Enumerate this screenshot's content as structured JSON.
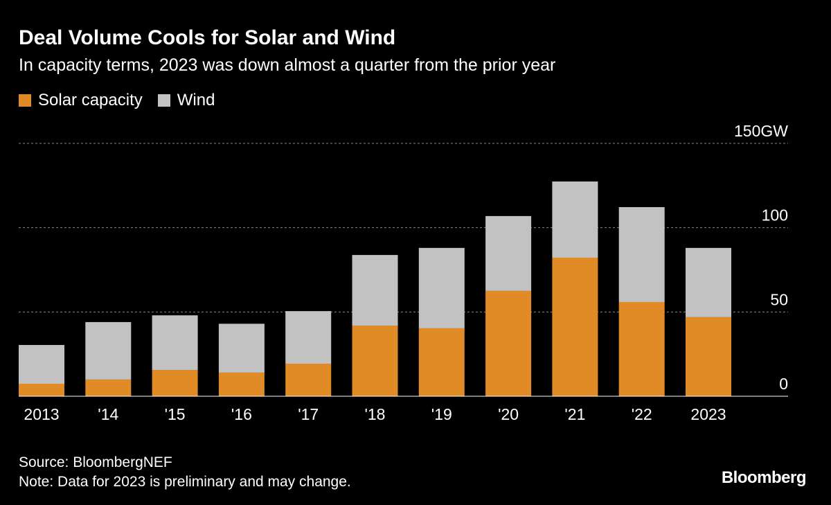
{
  "title": "Deal Volume Cools for Solar and Wind",
  "subtitle": "In capacity terms, 2023 was down almost a quarter from the prior year",
  "source": "Source: BloombergNEF",
  "note": "Note: Data for 2023 is preliminary and may change.",
  "logo": "Bloomberg",
  "colors": {
    "solar": "#e08b26",
    "wind": "#c2c2c2",
    "background": "#000000",
    "grid": "#888888"
  },
  "chart_data": {
    "type": "bar",
    "stacked": true,
    "categories": [
      "2013",
      "'14",
      "'15",
      "'16",
      "'17",
      "'18",
      "'19",
      "'20",
      "'21",
      "'22",
      "2023"
    ],
    "series": [
      {
        "name": "Solar capacity",
        "values": [
          7.4,
          9.9,
          15.6,
          14.0,
          19.3,
          41.9,
          40.3,
          62.5,
          82.2,
          55.9,
          46.9
        ]
      },
      {
        "name": "Wind",
        "values": [
          23.0,
          34.1,
          32.4,
          29.0,
          31.2,
          41.9,
          47.7,
          44.4,
          45.2,
          56.3,
          41.1
        ]
      }
    ],
    "ylim": [
      0,
      150
    ],
    "yticks": [
      0,
      50,
      100,
      150
    ],
    "ytick_labels": [
      "0",
      "50",
      "100",
      "150GW"
    ],
    "grid": true,
    "legend": "top-left",
    "unit": "GW"
  }
}
